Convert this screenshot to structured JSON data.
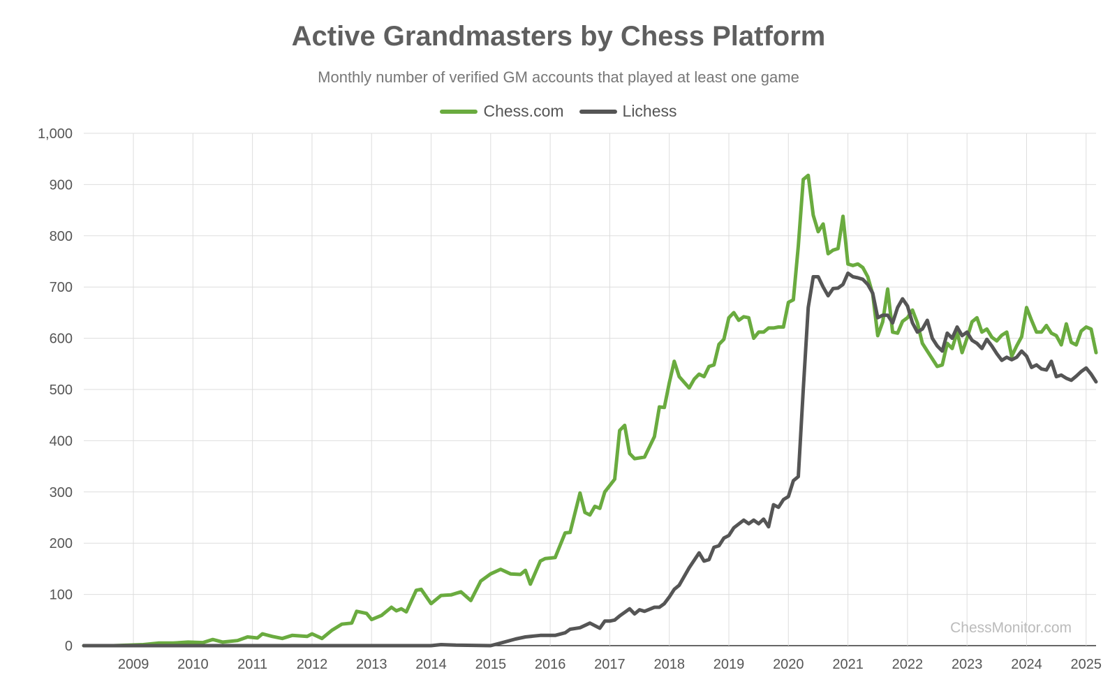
{
  "chart_data": {
    "type": "line",
    "title": "Active Grandmasters by Chess Platform",
    "subtitle": "Monthly number of verified GM accounts that played at least one game",
    "xlabel": "",
    "ylabel": "",
    "x_ticks": [
      "2009",
      "2010",
      "2011",
      "2012",
      "2013",
      "2014",
      "2015",
      "2016",
      "2017",
      "2018",
      "2019",
      "2020",
      "2021",
      "2022",
      "2023",
      "2024",
      "2025"
    ],
    "y_ticks": [
      "0",
      "100",
      "200",
      "300",
      "400",
      "500",
      "600",
      "700",
      "800",
      "900",
      "1,000"
    ],
    "ylim": [
      0,
      1000
    ],
    "xlim": [
      "2008-03",
      "2025-03"
    ],
    "grid": true,
    "legend_position": "top-center",
    "watermark": "ChessMonitor.com",
    "series": [
      {
        "name": "Chess.com",
        "color": "#6aab3f",
        "points": [
          [
            "2008-03",
            0
          ],
          [
            "2008-06",
            0
          ],
          [
            "2008-09",
            0
          ],
          [
            "2008-12",
            1
          ],
          [
            "2009-03",
            2
          ],
          [
            "2009-06",
            5
          ],
          [
            "2009-09",
            5
          ],
          [
            "2009-12",
            7
          ],
          [
            "2010-03",
            6
          ],
          [
            "2010-05",
            12
          ],
          [
            "2010-07",
            7
          ],
          [
            "2010-10",
            10
          ],
          [
            "2010-12",
            17
          ],
          [
            "2011-02",
            15
          ],
          [
            "2011-03",
            23
          ],
          [
            "2011-05",
            18
          ],
          [
            "2011-07",
            14
          ],
          [
            "2011-09",
            20
          ],
          [
            "2011-12",
            18
          ],
          [
            "2012-01",
            23
          ],
          [
            "2012-03",
            14
          ],
          [
            "2012-05",
            30
          ],
          [
            "2012-07",
            42
          ],
          [
            "2012-09",
            44
          ],
          [
            "2012-10",
            67
          ],
          [
            "2012-12",
            63
          ],
          [
            "2013-01",
            51
          ],
          [
            "2013-03",
            59
          ],
          [
            "2013-05",
            75
          ],
          [
            "2013-06",
            68
          ],
          [
            "2013-07",
            72
          ],
          [
            "2013-08",
            66
          ],
          [
            "2013-10",
            108
          ],
          [
            "2013-11",
            110
          ],
          [
            "2014-01",
            82
          ],
          [
            "2014-03",
            98
          ],
          [
            "2014-05",
            99
          ],
          [
            "2014-07",
            105
          ],
          [
            "2014-09",
            88
          ],
          [
            "2014-11",
            126
          ],
          [
            "2015-01",
            140
          ],
          [
            "2015-03",
            149
          ],
          [
            "2015-05",
            140
          ],
          [
            "2015-07",
            139
          ],
          [
            "2015-08",
            147
          ],
          [
            "2015-09",
            120
          ],
          [
            "2015-11",
            165
          ],
          [
            "2015-12",
            170
          ],
          [
            "2016-02",
            172
          ],
          [
            "2016-04",
            220
          ],
          [
            "2016-05",
            221
          ],
          [
            "2016-07",
            298
          ],
          [
            "2016-08",
            260
          ],
          [
            "2016-09",
            255
          ],
          [
            "2016-10",
            272
          ],
          [
            "2016-11",
            268
          ],
          [
            "2016-12",
            300
          ],
          [
            "2017-02",
            325
          ],
          [
            "2017-03",
            420
          ],
          [
            "2017-04",
            430
          ],
          [
            "2017-05",
            375
          ],
          [
            "2017-06",
            365
          ],
          [
            "2017-08",
            368
          ],
          [
            "2017-10",
            408
          ],
          [
            "2017-11",
            466
          ],
          [
            "2017-12",
            465
          ],
          [
            "2018-01",
            513
          ],
          [
            "2018-02",
            555
          ],
          [
            "2018-03",
            525
          ],
          [
            "2018-05",
            503
          ],
          [
            "2018-06",
            520
          ],
          [
            "2018-07",
            530
          ],
          [
            "2018-08",
            525
          ],
          [
            "2018-09",
            545
          ],
          [
            "2018-10",
            548
          ],
          [
            "2018-11",
            588
          ],
          [
            "2018-12",
            598
          ],
          [
            "2019-01",
            640
          ],
          [
            "2019-02",
            650
          ],
          [
            "2019-03",
            635
          ],
          [
            "2019-04",
            642
          ],
          [
            "2019-05",
            640
          ],
          [
            "2019-06",
            600
          ],
          [
            "2019-07",
            612
          ],
          [
            "2019-08",
            612
          ],
          [
            "2019-09",
            620
          ],
          [
            "2019-10",
            620
          ],
          [
            "2019-11",
            622
          ],
          [
            "2019-12",
            622
          ],
          [
            "2020-01",
            670
          ],
          [
            "2020-02",
            675
          ],
          [
            "2020-03",
            780
          ],
          [
            "2020-04",
            910
          ],
          [
            "2020-05",
            918
          ],
          [
            "2020-06",
            840
          ],
          [
            "2020-07",
            808
          ],
          [
            "2020-08",
            823
          ],
          [
            "2020-09",
            765
          ],
          [
            "2020-10",
            772
          ],
          [
            "2020-11",
            775
          ],
          [
            "2020-12",
            838
          ],
          [
            "2021-01",
            745
          ],
          [
            "2021-02",
            742
          ],
          [
            "2021-03",
            745
          ],
          [
            "2021-04",
            738
          ],
          [
            "2021-05",
            720
          ],
          [
            "2021-06",
            686
          ],
          [
            "2021-07",
            605
          ],
          [
            "2021-08",
            632
          ],
          [
            "2021-09",
            696
          ],
          [
            "2021-10",
            612
          ],
          [
            "2021-11",
            610
          ],
          [
            "2021-12",
            633
          ],
          [
            "2022-01",
            640
          ],
          [
            "2022-02",
            655
          ],
          [
            "2022-03",
            630
          ],
          [
            "2022-04",
            590
          ],
          [
            "2022-05",
            575
          ],
          [
            "2022-06",
            560
          ],
          [
            "2022-07",
            545
          ],
          [
            "2022-08",
            548
          ],
          [
            "2022-09",
            590
          ],
          [
            "2022-10",
            580
          ],
          [
            "2022-11",
            612
          ],
          [
            "2022-12",
            572
          ],
          [
            "2023-01",
            600
          ],
          [
            "2023-02",
            632
          ],
          [
            "2023-03",
            640
          ],
          [
            "2023-04",
            612
          ],
          [
            "2023-05",
            618
          ],
          [
            "2023-06",
            602
          ],
          [
            "2023-07",
            595
          ],
          [
            "2023-08",
            606
          ],
          [
            "2023-09",
            612
          ],
          [
            "2023-10",
            565
          ],
          [
            "2023-11",
            585
          ],
          [
            "2023-12",
            603
          ],
          [
            "2024-01",
            660
          ],
          [
            "2024-02",
            635
          ],
          [
            "2024-03",
            612
          ],
          [
            "2024-04",
            612
          ],
          [
            "2024-05",
            625
          ],
          [
            "2024-06",
            610
          ],
          [
            "2024-07",
            605
          ],
          [
            "2024-08",
            587
          ],
          [
            "2024-09",
            628
          ],
          [
            "2024-10",
            592
          ],
          [
            "2024-11",
            587
          ],
          [
            "2024-12",
            614
          ],
          [
            "2025-01",
            622
          ],
          [
            "2025-02",
            618
          ],
          [
            "2025-03",
            572
          ]
        ]
      },
      {
        "name": "Lichess",
        "color": "#555555",
        "points": [
          [
            "2008-03",
            0
          ],
          [
            "2014-01",
            0
          ],
          [
            "2014-03",
            2
          ],
          [
            "2014-06",
            1
          ],
          [
            "2015-01",
            0
          ],
          [
            "2015-03",
            5
          ],
          [
            "2015-06",
            13
          ],
          [
            "2015-08",
            17
          ],
          [
            "2015-11",
            20
          ],
          [
            "2016-02",
            20
          ],
          [
            "2016-04",
            25
          ],
          [
            "2016-05",
            32
          ],
          [
            "2016-07",
            35
          ],
          [
            "2016-09",
            44
          ],
          [
            "2016-11",
            34
          ],
          [
            "2016-12",
            48
          ],
          [
            "2017-01",
            48
          ],
          [
            "2017-02",
            50
          ],
          [
            "2017-03",
            58
          ],
          [
            "2017-05",
            72
          ],
          [
            "2017-06",
            62
          ],
          [
            "2017-07",
            70
          ],
          [
            "2017-08",
            67
          ],
          [
            "2017-10",
            75
          ],
          [
            "2017-11",
            75
          ],
          [
            "2017-12",
            82
          ],
          [
            "2018-01",
            95
          ],
          [
            "2018-02",
            110
          ],
          [
            "2018-03",
            118
          ],
          [
            "2018-05",
            152
          ],
          [
            "2018-07",
            181
          ],
          [
            "2018-08",
            165
          ],
          [
            "2018-09",
            168
          ],
          [
            "2018-10",
            192
          ],
          [
            "2018-11",
            195
          ],
          [
            "2018-12",
            210
          ],
          [
            "2019-01",
            215
          ],
          [
            "2019-02",
            230
          ],
          [
            "2019-04",
            245
          ],
          [
            "2019-05",
            238
          ],
          [
            "2019-06",
            245
          ],
          [
            "2019-07",
            238
          ],
          [
            "2019-08",
            247
          ],
          [
            "2019-09",
            232
          ],
          [
            "2019-10",
            275
          ],
          [
            "2019-11",
            270
          ],
          [
            "2019-12",
            285
          ],
          [
            "2020-01",
            291
          ],
          [
            "2020-02",
            322
          ],
          [
            "2020-03",
            330
          ],
          [
            "2020-04",
            500
          ],
          [
            "2020-05",
            660
          ],
          [
            "2020-06",
            720
          ],
          [
            "2020-07",
            720
          ],
          [
            "2020-08",
            700
          ],
          [
            "2020-09",
            683
          ],
          [
            "2020-10",
            697
          ],
          [
            "2020-11",
            698
          ],
          [
            "2020-12",
            705
          ],
          [
            "2021-01",
            727
          ],
          [
            "2021-02",
            720
          ],
          [
            "2021-03",
            718
          ],
          [
            "2021-04",
            715
          ],
          [
            "2021-05",
            705
          ],
          [
            "2021-06",
            688
          ],
          [
            "2021-07",
            640
          ],
          [
            "2021-08",
            645
          ],
          [
            "2021-09",
            645
          ],
          [
            "2021-10",
            630
          ],
          [
            "2021-11",
            660
          ],
          [
            "2021-12",
            677
          ],
          [
            "2022-01",
            663
          ],
          [
            "2022-02",
            630
          ],
          [
            "2022-03",
            612
          ],
          [
            "2022-04",
            618
          ],
          [
            "2022-05",
            635
          ],
          [
            "2022-06",
            600
          ],
          [
            "2022-07",
            585
          ],
          [
            "2022-08",
            575
          ],
          [
            "2022-09",
            610
          ],
          [
            "2022-10",
            600
          ],
          [
            "2022-11",
            622
          ],
          [
            "2022-12",
            605
          ],
          [
            "2023-01",
            612
          ],
          [
            "2023-02",
            596
          ],
          [
            "2023-03",
            590
          ],
          [
            "2023-04",
            580
          ],
          [
            "2023-05",
            598
          ],
          [
            "2023-06",
            585
          ],
          [
            "2023-07",
            570
          ],
          [
            "2023-08",
            557
          ],
          [
            "2023-09",
            563
          ],
          [
            "2023-10",
            558
          ],
          [
            "2023-11",
            563
          ],
          [
            "2023-12",
            575
          ],
          [
            "2024-01",
            565
          ],
          [
            "2024-02",
            543
          ],
          [
            "2024-03",
            548
          ],
          [
            "2024-04",
            540
          ],
          [
            "2024-05",
            538
          ],
          [
            "2024-06",
            555
          ],
          [
            "2024-07",
            525
          ],
          [
            "2024-08",
            528
          ],
          [
            "2024-09",
            522
          ],
          [
            "2024-10",
            518
          ],
          [
            "2024-11",
            526
          ],
          [
            "2024-12",
            535
          ],
          [
            "2025-01",
            542
          ],
          [
            "2025-02",
            530
          ],
          [
            "2025-03",
            515
          ]
        ]
      }
    ]
  }
}
